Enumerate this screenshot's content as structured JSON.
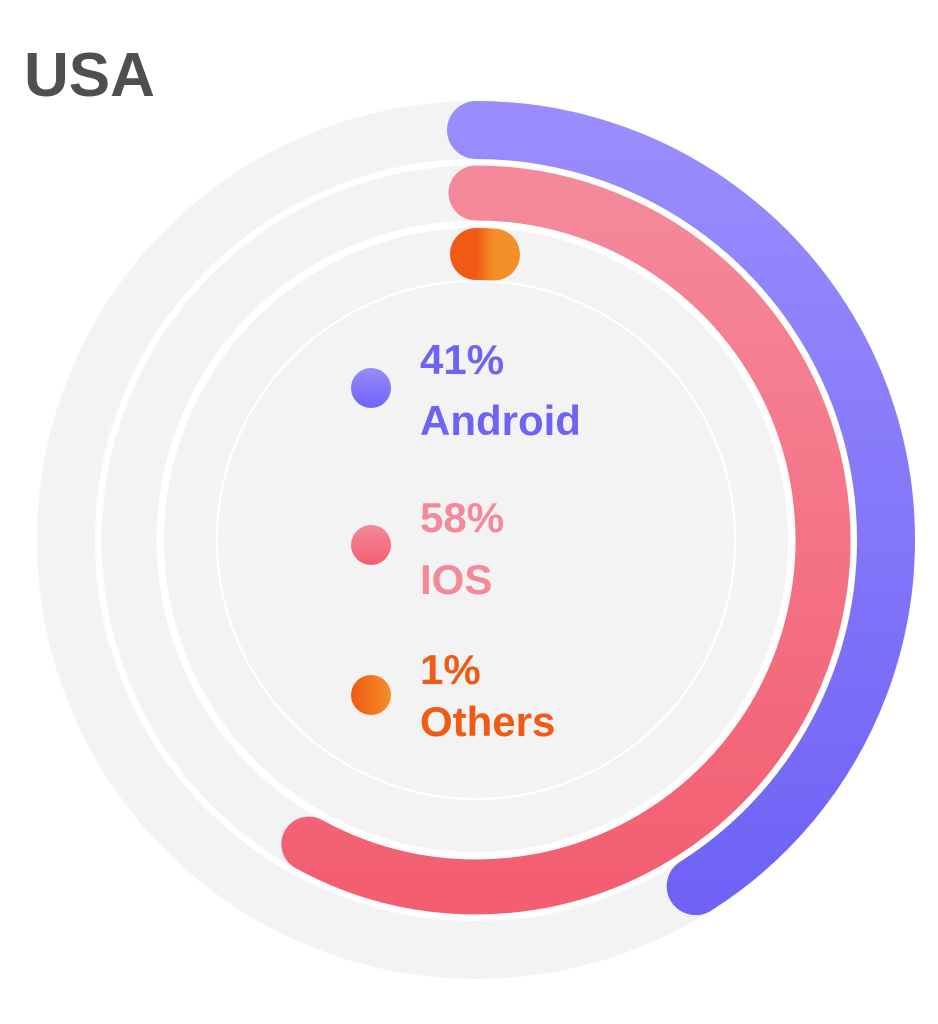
{
  "chart_data": {
    "type": "radial-bar",
    "title": "USA",
    "series": [
      {
        "name": "Android",
        "value": 41,
        "value_label": "41%",
        "color_start": "#9a8cfd",
        "color_end": "#6f63f6"
      },
      {
        "name": "IOS",
        "value": 58,
        "value_label": "58%",
        "color_start": "#f4899a",
        "color_end": "#f35e71"
      },
      {
        "name": "Others",
        "value": 1,
        "value_label": "1%",
        "color_start": "#f05a14",
        "color_end": "#f58f2a"
      }
    ],
    "max": 100,
    "track_color": "#f3f3f3",
    "legend_position": "center"
  }
}
